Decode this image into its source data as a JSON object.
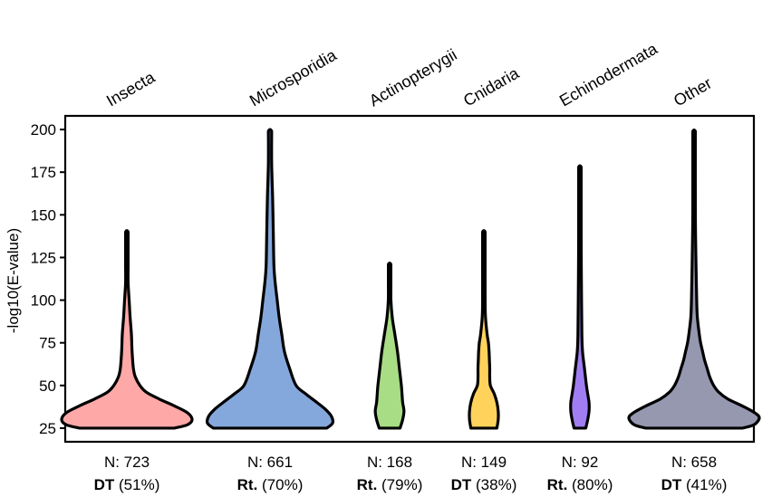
{
  "chart_data": {
    "type": "violin",
    "ylabel": "-log10(E-value)",
    "ylim": [
      17,
      208
    ],
    "yticks": [
      25,
      50,
      75,
      100,
      125,
      150,
      175,
      200
    ],
    "categories": [
      {
        "name": "Insecta",
        "color": "#ffa8a8",
        "n_label": "N: 723",
        "method": "DT",
        "pct": " (51%)",
        "density": [
          [
            25,
            0.73
          ],
          [
            27,
            0.93
          ],
          [
            30,
            1.0
          ],
          [
            34,
            0.93
          ],
          [
            38,
            0.73
          ],
          [
            42,
            0.5
          ],
          [
            46,
            0.3
          ],
          [
            50,
            0.2
          ],
          [
            55,
            0.13
          ],
          [
            60,
            0.1
          ],
          [
            70,
            0.08
          ],
          [
            80,
            0.07
          ],
          [
            90,
            0.05
          ],
          [
            100,
            0.035
          ],
          [
            110,
            0.017
          ],
          [
            120,
            0.013
          ],
          [
            130,
            0.01
          ],
          [
            140,
            0.004
          ]
        ]
      },
      {
        "name": "Microsporidia",
        "color": "#85a8dc",
        "n_label": "N: 661",
        "method": "Rt.",
        "pct": " (70%)",
        "density": [
          [
            25,
            0.87
          ],
          [
            28,
            0.96
          ],
          [
            32,
            0.94
          ],
          [
            36,
            0.85
          ],
          [
            40,
            0.72
          ],
          [
            45,
            0.55
          ],
          [
            50,
            0.4
          ],
          [
            60,
            0.3
          ],
          [
            70,
            0.22
          ],
          [
            80,
            0.18
          ],
          [
            90,
            0.14
          ],
          [
            100,
            0.11
          ],
          [
            110,
            0.08
          ],
          [
            120,
            0.06
          ],
          [
            140,
            0.05
          ],
          [
            160,
            0.04
          ],
          [
            180,
            0.025
          ],
          [
            199,
            0.025
          ]
        ]
      },
      {
        "name": "Actinopterygii",
        "color": "#a8dc85",
        "n_label": "N: 168",
        "method": "Rt.",
        "pct": " (79%)",
        "density": [
          [
            25,
            0.16
          ],
          [
            30,
            0.2
          ],
          [
            35,
            0.22
          ],
          [
            40,
            0.2
          ],
          [
            45,
            0.19
          ],
          [
            50,
            0.18
          ],
          [
            60,
            0.15
          ],
          [
            70,
            0.12
          ],
          [
            80,
            0.08
          ],
          [
            90,
            0.04
          ],
          [
            100,
            0.02
          ],
          [
            110,
            0.015
          ],
          [
            121,
            0.01
          ]
        ]
      },
      {
        "name": "Cnidaria",
        "color": "#ffd25c",
        "n_label": "N: 149",
        "method": "DT",
        "pct": " (38%)",
        "density": [
          [
            25,
            0.2
          ],
          [
            30,
            0.22
          ],
          [
            35,
            0.22
          ],
          [
            40,
            0.2
          ],
          [
            45,
            0.16
          ],
          [
            50,
            0.1
          ],
          [
            55,
            0.09
          ],
          [
            60,
            0.09
          ],
          [
            65,
            0.085
          ],
          [
            70,
            0.08
          ],
          [
            75,
            0.07
          ],
          [
            80,
            0.05
          ],
          [
            90,
            0.025
          ],
          [
            100,
            0.015
          ],
          [
            120,
            0.01
          ],
          [
            140,
            0.008
          ]
        ]
      },
      {
        "name": "Echinodermata",
        "color": "#a07ef2",
        "n_label": "N: 92",
        "method": "Rt.",
        "pct": " (80%)",
        "density": [
          [
            25,
            0.09
          ],
          [
            30,
            0.12
          ],
          [
            35,
            0.14
          ],
          [
            40,
            0.14
          ],
          [
            45,
            0.12
          ],
          [
            50,
            0.1
          ],
          [
            60,
            0.07
          ],
          [
            70,
            0.04
          ],
          [
            80,
            0.03
          ],
          [
            100,
            0.025
          ],
          [
            130,
            0.02
          ],
          [
            160,
            0.015
          ],
          [
            178,
            0.01
          ]
        ]
      },
      {
        "name": "Other",
        "color": "#9698b0",
        "n_label": "N: 658",
        "method": "DT",
        "pct": " (41%)",
        "density": [
          [
            25,
            0.74
          ],
          [
            27,
            0.92
          ],
          [
            31,
            1.0
          ],
          [
            34,
            0.93
          ],
          [
            38,
            0.74
          ],
          [
            42,
            0.52
          ],
          [
            46,
            0.38
          ],
          [
            50,
            0.3
          ],
          [
            55,
            0.24
          ],
          [
            60,
            0.2
          ],
          [
            65,
            0.16
          ],
          [
            70,
            0.13
          ],
          [
            75,
            0.1
          ],
          [
            80,
            0.08
          ],
          [
            90,
            0.05
          ],
          [
            100,
            0.04
          ],
          [
            120,
            0.03
          ],
          [
            150,
            0.02
          ],
          [
            199,
            0.01
          ]
        ]
      }
    ]
  }
}
